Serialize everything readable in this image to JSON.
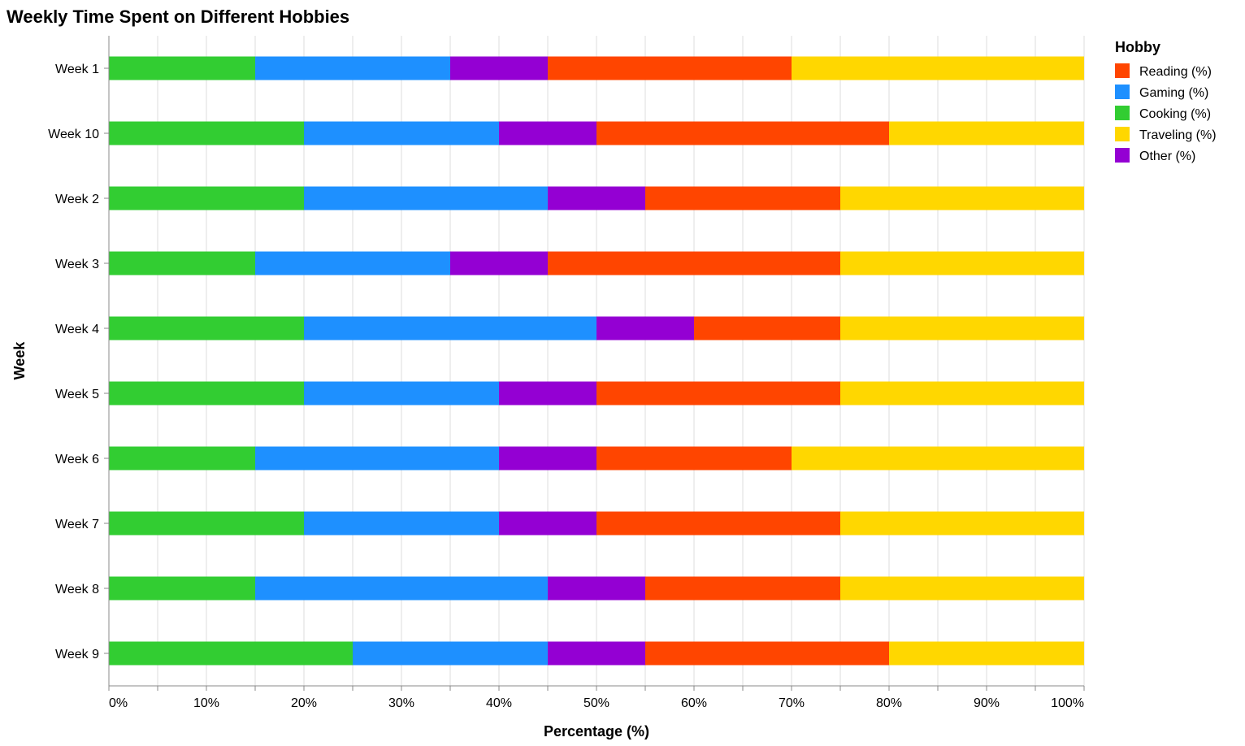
{
  "chart_data": {
    "type": "bar",
    "orientation": "horizontal",
    "stacked": true,
    "title": "Weekly Time Spent on Different Hobbies",
    "xlabel": "Percentage (%)",
    "ylabel": "Week",
    "xlim": [
      0,
      100
    ],
    "x_ticks": [
      "0%",
      "10%",
      "20%",
      "30%",
      "40%",
      "50%",
      "60%",
      "70%",
      "80%",
      "90%",
      "100%"
    ],
    "grid": true,
    "legend_title": "Hobby",
    "legend_position": "right",
    "categories": [
      "Week 1",
      "Week 10",
      "Week 2",
      "Week 3",
      "Week 4",
      "Week 5",
      "Week 6",
      "Week 7",
      "Week 8",
      "Week 9"
    ],
    "stack_order": [
      "Cooking (%)",
      "Gaming (%)",
      "Other (%)",
      "Reading (%)",
      "Traveling (%)"
    ],
    "series": [
      {
        "name": "Reading (%)",
        "color": "#ff4500",
        "values": [
          25,
          30,
          20,
          30,
          15,
          25,
          20,
          25,
          20,
          25
        ]
      },
      {
        "name": "Gaming (%)",
        "color": "#1e90ff",
        "values": [
          20,
          20,
          25,
          20,
          30,
          20,
          25,
          20,
          30,
          20
        ]
      },
      {
        "name": "Cooking (%)",
        "color": "#32cd32",
        "values": [
          15,
          20,
          20,
          15,
          20,
          20,
          15,
          20,
          15,
          25
        ]
      },
      {
        "name": "Traveling (%)",
        "color": "#ffd700",
        "values": [
          30,
          20,
          25,
          25,
          25,
          25,
          30,
          25,
          25,
          20
        ]
      },
      {
        "name": "Other (%)",
        "color": "#9400d3",
        "values": [
          10,
          10,
          10,
          10,
          10,
          10,
          10,
          10,
          10,
          10
        ]
      }
    ]
  }
}
